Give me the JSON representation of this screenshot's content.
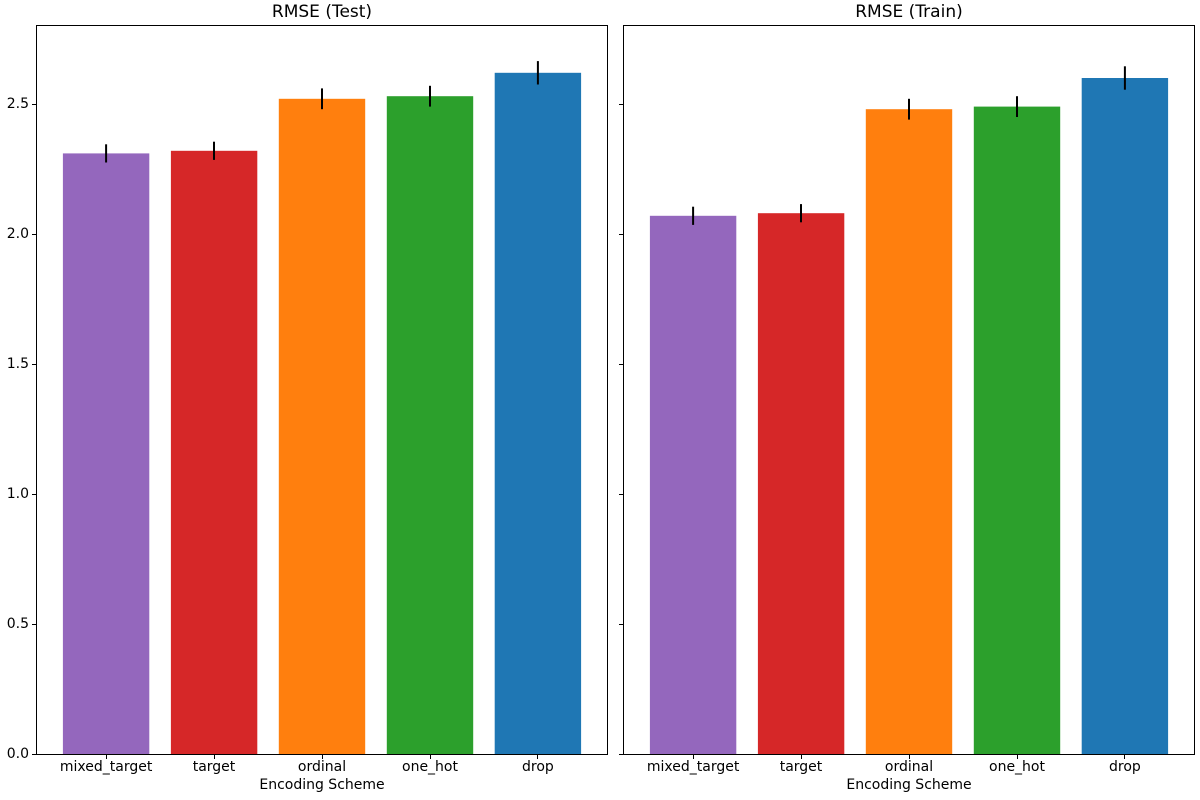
{
  "figure": {
    "background": "#ffffff",
    "error_bar_color": "#000000"
  },
  "chart_data": [
    {
      "type": "bar",
      "title": "RMSE (Test)",
      "xlabel": "Encoding Scheme",
      "ylabel": "",
      "categories": [
        "mixed_target",
        "target",
        "ordinal",
        "one_hot",
        "drop"
      ],
      "values": [
        2.31,
        2.32,
        2.52,
        2.53,
        2.62
      ],
      "errors": [
        0.035,
        0.035,
        0.04,
        0.04,
        0.045
      ],
      "colors": [
        "#9467bd",
        "#d62728",
        "#ff7f0e",
        "#2ca02c",
        "#1f77b4"
      ],
      "yticks": [
        "0.0",
        "0.5",
        "1.0",
        "1.5",
        "2.0",
        "2.5"
      ],
      "ylim": [
        0,
        2.8
      ],
      "bar_width": 0.8,
      "grid": false,
      "legend": "none"
    },
    {
      "type": "bar",
      "title": "RMSE (Train)",
      "xlabel": "Encoding Scheme",
      "ylabel": "",
      "categories": [
        "mixed_target",
        "target",
        "ordinal",
        "one_hot",
        "drop"
      ],
      "values": [
        2.07,
        2.08,
        2.48,
        2.49,
        2.6
      ],
      "errors": [
        0.035,
        0.035,
        0.04,
        0.04,
        0.045
      ],
      "colors": [
        "#9467bd",
        "#d62728",
        "#ff7f0e",
        "#2ca02c",
        "#1f77b4"
      ],
      "yticks": [
        "0.0",
        "0.5",
        "1.0",
        "1.5",
        "2.0",
        "2.5"
      ],
      "ylim": [
        0,
        2.8
      ],
      "bar_width": 0.8,
      "grid": false,
      "legend": "none"
    }
  ]
}
